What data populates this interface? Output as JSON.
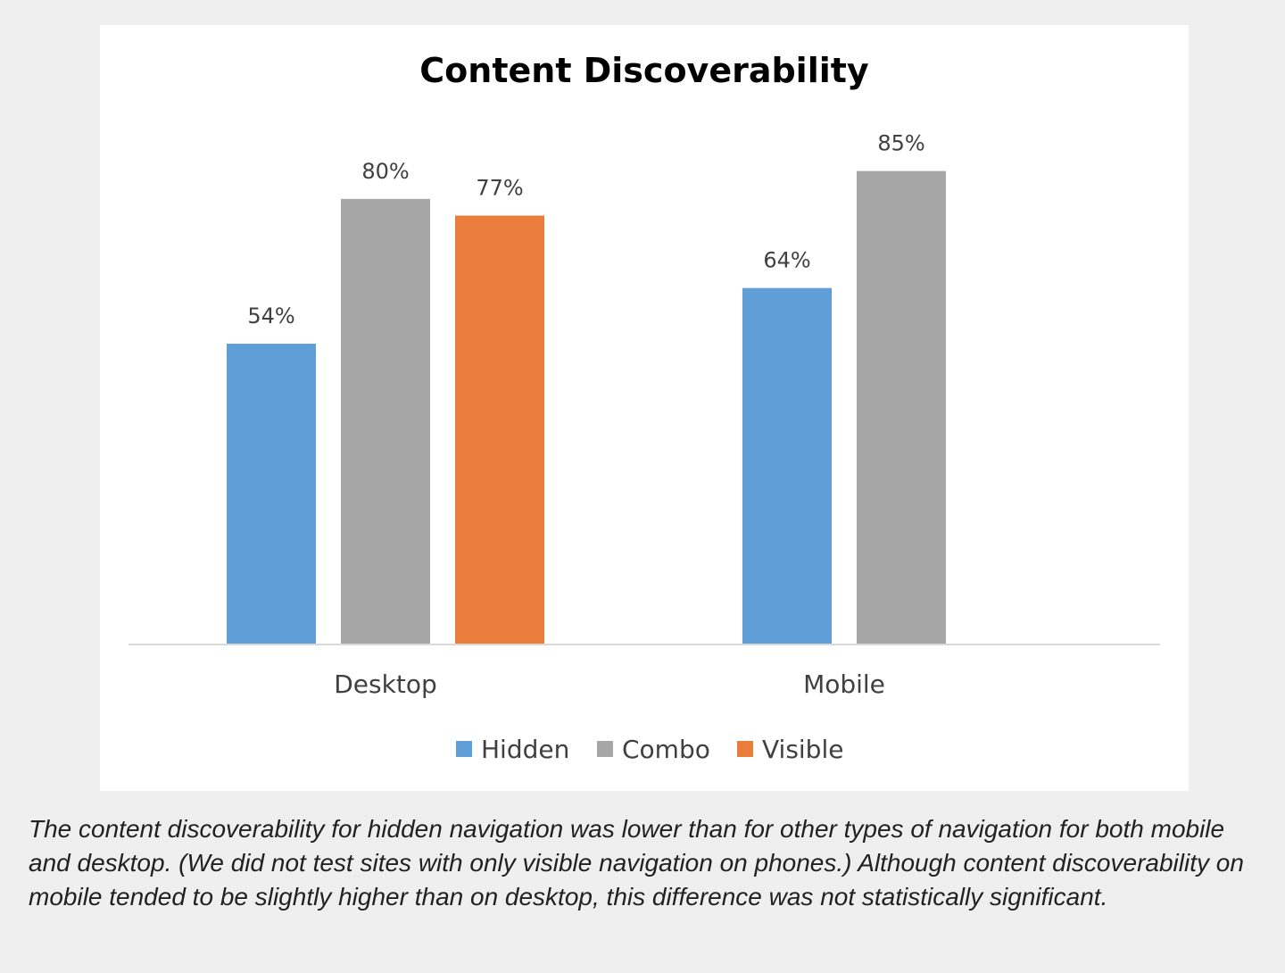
{
  "chart_data": {
    "type": "bar",
    "title": "Content Discoverability",
    "categories": [
      "Desktop",
      "Mobile"
    ],
    "series": [
      {
        "name": "Hidden",
        "color": "#5f9ed6",
        "values": [
          54,
          64
        ],
        "labels": [
          "54%",
          "64%"
        ]
      },
      {
        "name": "Combo",
        "color": "#a6a6a6",
        "values": [
          80,
          85
        ],
        "labels": [
          "80%",
          "85%"
        ]
      },
      {
        "name": "Visible",
        "color": "#eb7d3c",
        "values": [
          77,
          null
        ],
        "labels": [
          "77%",
          null
        ]
      }
    ],
    "ylim": [
      0,
      100
    ],
    "unit": "%",
    "grid": false,
    "legend": "bottom",
    "xlabel": "",
    "ylabel": ""
  },
  "caption": "The content discoverability for hidden navigation was lower than for other types of navigation for both mobile and desktop. (We did not test sites with only visible navigation on phones.) Although content discoverability on mobile tended to be slightly higher than on desktop, this difference was not statistically significant."
}
